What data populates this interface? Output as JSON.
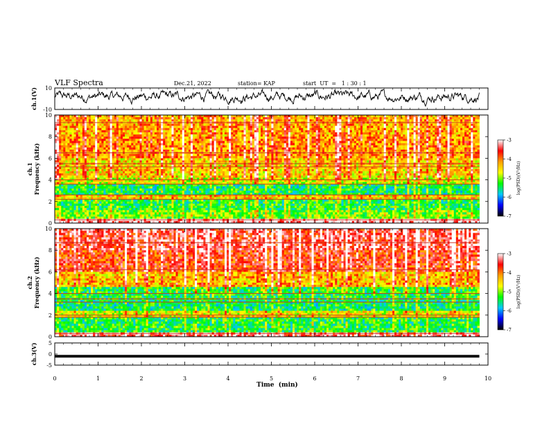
{
  "header": {
    "title": "VLF Spectra",
    "date": "Dec.21, 2022",
    "station": "station= KAP",
    "start": "start  UT  =   1 : 30 : 1"
  },
  "colorbar": {
    "label": "log(PSD)(V²/Hz)",
    "ticks": [
      "-3",
      "-4",
      "-5",
      "-6",
      "-7"
    ],
    "colors": [
      "#ffffff",
      "#ff0000",
      "#ffa000",
      "#ffff00",
      "#00ff00",
      "#00c8ff",
      "#0000ff",
      "#000000"
    ]
  },
  "chart_data": [
    {
      "type": "line",
      "name": "ch1-waveform",
      "ylabel": "ch.1(V)",
      "ylim": [
        -10,
        10
      ],
      "ytick_labels": [
        "10",
        "-10"
      ],
      "xlim": [
        0,
        10
      ],
      "x_extent_min": 9.8,
      "shape": "noisy signal oscillating around about 2 V with excursions between roughly -8 V and 8 V"
    },
    {
      "type": "heatmap",
      "name": "ch1-spectrogram",
      "ylabel": "ch.1 Frequency (kHz)",
      "ylim": [
        0,
        10
      ],
      "ytick_labels": [
        "10",
        "8",
        "6",
        "4",
        "2",
        "0"
      ],
      "xlim": [
        0,
        10
      ],
      "x_extent_min": 9.8,
      "value_range": [
        -7,
        -3
      ],
      "bands": [
        {
          "from_khz": 0,
          "to_khz": 0.5,
          "level": -3.2
        },
        {
          "from_khz": 0.5,
          "to_khz": 1.2,
          "level": -5.0
        },
        {
          "from_khz": 1.2,
          "to_khz": 2.2,
          "level": -5.3
        },
        {
          "from_khz": 2.2,
          "to_khz": 2.6,
          "level": -4.4
        },
        {
          "from_khz": 2.6,
          "to_khz": 3.6,
          "level": -5.4
        },
        {
          "from_khz": 3.6,
          "to_khz": 4.2,
          "level": -4.7
        },
        {
          "from_khz": 4.2,
          "to_khz": 6.0,
          "level": -4.4
        },
        {
          "from_khz": 6.0,
          "to_khz": 8.0,
          "level": -4.1
        },
        {
          "from_khz": 8.0,
          "to_khz": 10.0,
          "level": -4.2
        }
      ],
      "lines_khz": [
        0.3,
        2.2,
        2.6,
        3.6,
        4.0,
        5.2,
        5.5,
        6.5,
        9.3
      ]
    },
    {
      "type": "heatmap",
      "name": "ch2-spectrogram",
      "ylabel": "ch.2 Frequency (kHz)",
      "ylim": [
        0,
        10
      ],
      "ytick_labels": [
        "10",
        "8",
        "6",
        "4",
        "2",
        "0"
      ],
      "xlim": [
        0,
        10
      ],
      "x_extent_min": 9.8,
      "value_range": [
        -7,
        -3
      ],
      "bands": [
        {
          "from_khz": 0,
          "to_khz": 0.5,
          "level": -3.4
        },
        {
          "from_khz": 0.5,
          "to_khz": 1.8,
          "level": -5.3
        },
        {
          "from_khz": 1.8,
          "to_khz": 2.4,
          "level": -4.6
        },
        {
          "from_khz": 2.4,
          "to_khz": 3.5,
          "level": -5.4
        },
        {
          "from_khz": 3.5,
          "to_khz": 4.6,
          "level": -5.3
        },
        {
          "from_khz": 4.6,
          "to_khz": 6.0,
          "level": -4.3
        },
        {
          "from_khz": 6.0,
          "to_khz": 8.0,
          "level": -3.7
        },
        {
          "from_khz": 8.0,
          "to_khz": 10.0,
          "level": -3.5
        }
      ],
      "lines_khz": [
        0.3,
        1.8,
        2.0,
        3.2,
        3.5,
        4.0,
        6.2,
        8.7
      ]
    },
    {
      "type": "line",
      "name": "ch3-waveform",
      "ylabel": "ch.3(V)",
      "ylim": [
        -5,
        5
      ],
      "ytick_labels": [
        "5",
        "0",
        "-5"
      ],
      "xlim": [
        0,
        10
      ],
      "x_extent_min": 9.8,
      "center_value": -1,
      "band_halfwidth": 0.6
    }
  ],
  "x_axis": {
    "label": "Time  (min)",
    "ticks": [
      "0",
      "1",
      "2",
      "3",
      "4",
      "5",
      "6",
      "7",
      "8",
      "9",
      "10"
    ],
    "range": [
      0,
      10
    ]
  }
}
